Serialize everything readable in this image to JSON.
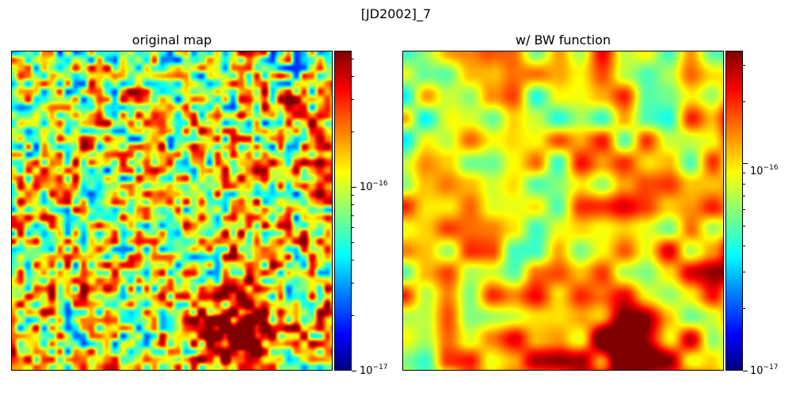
{
  "figure": {
    "title": "[JD2002]_7"
  },
  "chart_data": [
    {
      "type": "heatmap",
      "title": "original map",
      "colormap": "jet",
      "color_scale": "log",
      "clim": [
        1e-17,
        5.5e-16
      ],
      "colorbar_ticks": [
        {
          "value": 1e-17,
          "base": "10",
          "exponent": "−17"
        },
        {
          "value": 1e-16,
          "base": "10",
          "exponent": "−16"
        }
      ],
      "axes_visible": false,
      "description_regions": "noisy speckled field; high-intensity red cluster near bottom-center-right"
    },
    {
      "type": "heatmap",
      "title": "w/ BW function",
      "colormap": "jet",
      "color_scale": "log",
      "clim": [
        1e-17,
        3.5e-16
      ],
      "colorbar_ticks": [
        {
          "value": 1e-17,
          "base": "10",
          "exponent": "−17"
        },
        {
          "value": 1e-16,
          "base": "10",
          "exponent": "−16"
        }
      ],
      "axes_visible": false,
      "description_regions": "smoothed field; high-intensity red cluster near bottom-center-right"
    }
  ]
}
